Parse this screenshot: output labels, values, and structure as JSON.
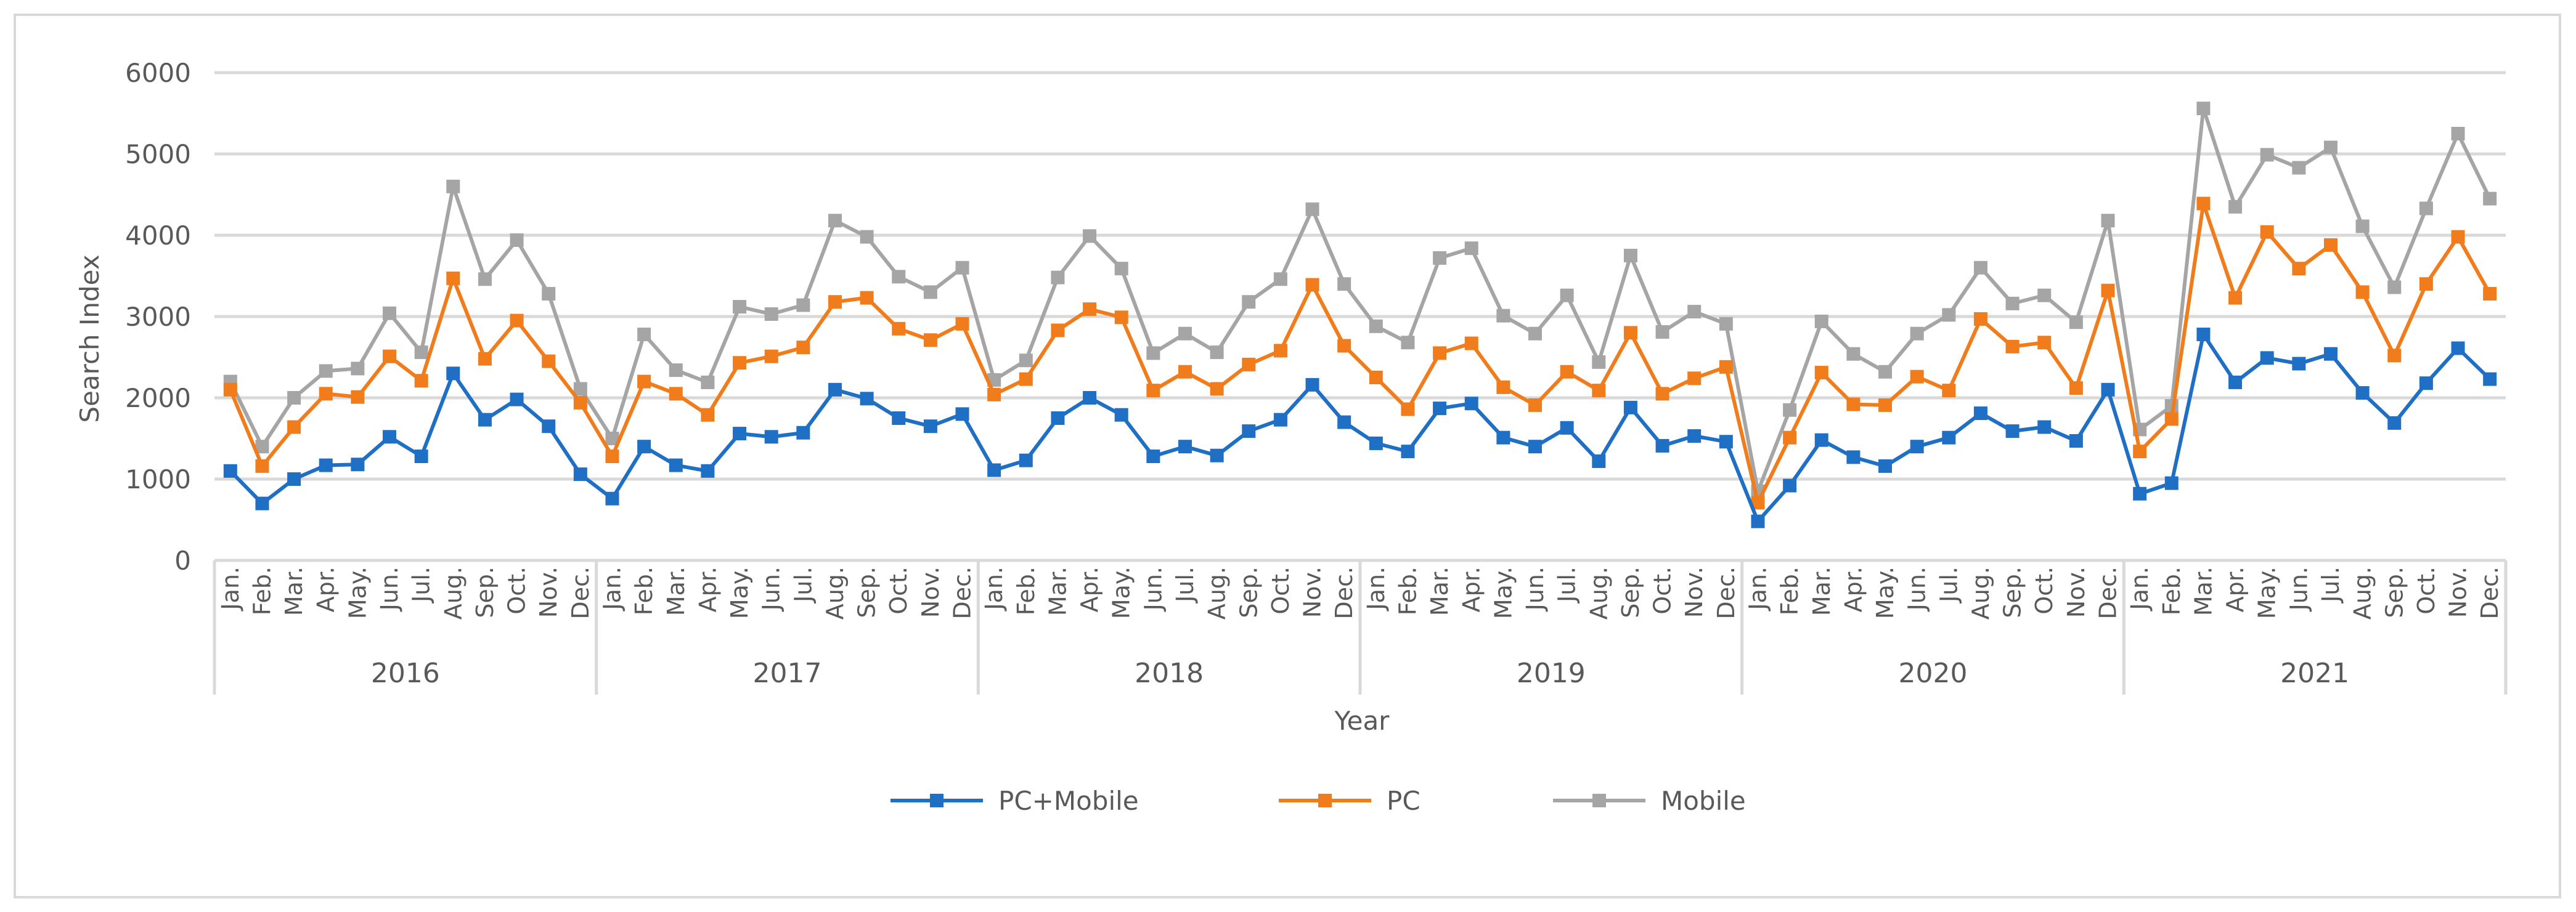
{
  "chart_data": {
    "type": "line",
    "title": "",
    "xlabel": "Year",
    "ylabel": "Search Index",
    "ylim": [
      0,
      6000
    ],
    "yticks": [
      0,
      1000,
      2000,
      3000,
      4000,
      5000,
      6000
    ],
    "grid": true,
    "legend_position": "bottom",
    "years": [
      "2016",
      "2017",
      "2018",
      "2019",
      "2020",
      "2021"
    ],
    "months": [
      "Jan.",
      "Feb.",
      "Mar.",
      "Apr.",
      "May.",
      "Jun.",
      "Jul.",
      "Aug.",
      "Sep.",
      "Oct.",
      "Nov.",
      "Dec."
    ],
    "series": [
      {
        "name": "PC+Mobile",
        "color": "#1f6fc5",
        "values": [
          1100,
          700,
          1000,
          1170,
          1180,
          1520,
          1280,
          2300,
          1730,
          1980,
          1650,
          1060,
          760,
          1400,
          1170,
          1100,
          1560,
          1520,
          1570,
          2100,
          1990,
          1750,
          1650,
          1800,
          1110,
          1230,
          1750,
          2000,
          1790,
          1280,
          1400,
          1290,
          1590,
          1730,
          2160,
          1700,
          1440,
          1340,
          1870,
          1930,
          1510,
          1400,
          1630,
          1220,
          1880,
          1410,
          1530,
          1460,
          480,
          920,
          1480,
          1270,
          1160,
          1400,
          1510,
          1810,
          1590,
          1640,
          1470,
          2100,
          820,
          950,
          2780,
          2190,
          2490,
          2420,
          2540,
          2060,
          1690,
          2180,
          2610,
          2230
        ]
      },
      {
        "name": "PC",
        "color": "#f07c1c",
        "values": [
          2100,
          1160,
          1640,
          2050,
          2010,
          2510,
          2210,
          3470,
          2480,
          2950,
          2450,
          1940,
          1280,
          2200,
          2050,
          1790,
          2430,
          2510,
          2620,
          3180,
          3230,
          2850,
          2710,
          2910,
          2040,
          2230,
          2830,
          3090,
          2990,
          2090,
          2320,
          2110,
          2410,
          2580,
          3390,
          2640,
          2250,
          1860,
          2550,
          2670,
          2130,
          1910,
          2320,
          2090,
          2800,
          2050,
          2240,
          2380,
          710,
          1510,
          2310,
          1920,
          1910,
          2260,
          2090,
          2970,
          2630,
          2680,
          2120,
          3320,
          1340,
          1740,
          4390,
          3230,
          4040,
          3590,
          3880,
          3300,
          2520,
          3400,
          3980,
          3280
        ]
      },
      {
        "name": "Mobile",
        "color": "#a5a5a5",
        "values": [
          2200,
          1400,
          2000,
          2330,
          2360,
          3040,
          2560,
          4600,
          3460,
          3940,
          3280,
          2110,
          1500,
          2780,
          2340,
          2190,
          3120,
          3030,
          3140,
          4180,
          3980,
          3490,
          3300,
          3600,
          2220,
          2460,
          3480,
          3990,
          3590,
          2550,
          2790,
          2560,
          3180,
          3460,
          4320,
          3400,
          2880,
          2680,
          3720,
          3840,
          3010,
          2790,
          3260,
          2440,
          3750,
          2810,
          3060,
          2910,
          850,
          1850,
          2940,
          2540,
          2320,
          2790,
          3020,
          3600,
          3160,
          3260,
          2930,
          4180,
          1610,
          1900,
          5560,
          4350,
          4990,
          4830,
          5080,
          4110,
          3360,
          4330,
          5250,
          4450
        ]
      }
    ]
  }
}
